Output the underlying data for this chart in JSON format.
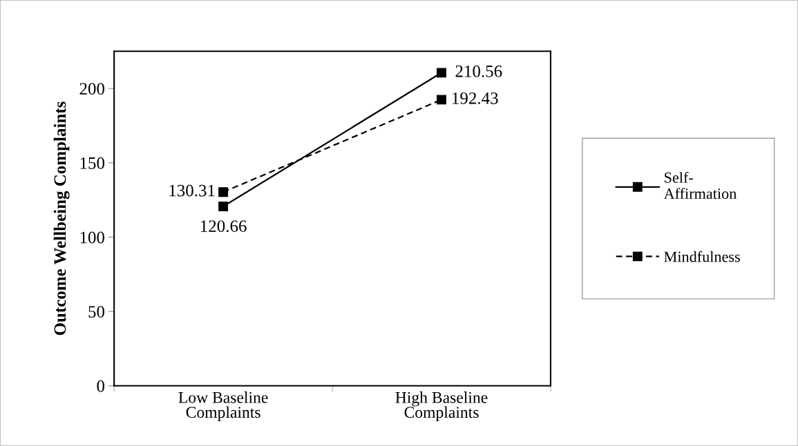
{
  "chart_data": {
    "type": "line",
    "ylabel": "Outcome Wellbeing Complaints",
    "categories": [
      "Low Baseline\nComplaints",
      "High Baseline\nComplaints"
    ],
    "series": [
      {
        "name": "Self-\nAffirmation",
        "color": "#000000",
        "values": [
          120.66,
          210.56
        ],
        "line_style": "solid",
        "value_labels": [
          "120.66",
          "210.56"
        ]
      },
      {
        "name": "Mindfulness",
        "color": "#000000",
        "values": [
          130.31,
          192.43
        ],
        "line_style": "dashed",
        "value_labels": [
          "130.31",
          "192.43"
        ]
      }
    ],
    "ylim": [
      0,
      225
    ],
    "yticks": [
      0,
      50,
      100,
      150,
      200
    ],
    "marker": "square",
    "legend": "right",
    "grid": false
  }
}
